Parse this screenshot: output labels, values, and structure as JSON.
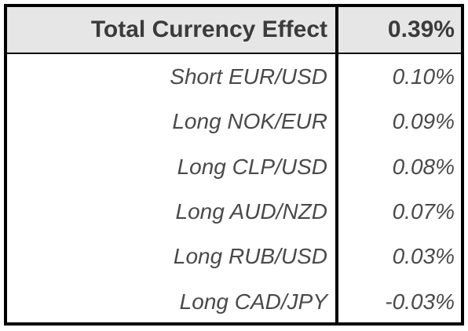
{
  "table": {
    "header": {
      "label": "Total Currency Effect",
      "value": "0.39%"
    },
    "rows": [
      {
        "label": "Short EUR/USD",
        "value": "0.10%"
      },
      {
        "label": "Long NOK/EUR",
        "value": "0.09%"
      },
      {
        "label": "Long CLP/USD",
        "value": "0.08%"
      },
      {
        "label": "Long AUD/NZD",
        "value": "0.07%"
      },
      {
        "label": "Long RUB/USD",
        "value": "0.03%"
      },
      {
        "label": "Long CAD/JPY",
        "value": "-0.03%"
      }
    ]
  },
  "colors": {
    "header_background": "#e6e6e6",
    "border": "#000000",
    "text": "#3a3a3a"
  }
}
